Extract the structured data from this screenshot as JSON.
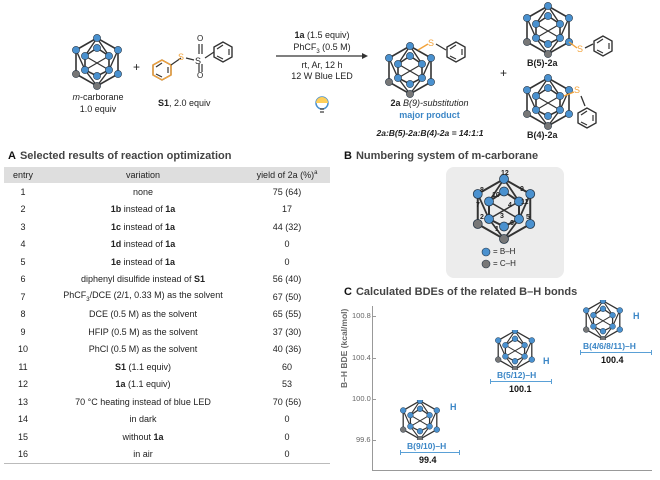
{
  "scheme": {
    "reactant1_label_italic": "m",
    "reactant1_label_rest": "-carborane",
    "reactant1_equiv": "1.0 equiv",
    "plus": "+",
    "reactant2_bold": "S1",
    "reactant2_rest": ", 2.0 equiv",
    "cond1_bold": "1a",
    "cond1_rest": " (1.5 equiv)",
    "cond2": "PhCF",
    "cond2_sub": "3",
    "cond2_rest": " (0.5 M)",
    "cond3": "rt, Ar, 12 h",
    "cond4": "12 W Blue LED",
    "product_bold": "2a",
    "product_italic": " B(9)-substitution",
    "major": "major product",
    "ratio": "2a:B(5)-2a:B(4)-2a = 14:1:1",
    "side1": "B(5)-2a",
    "side2": "B(4)-2a",
    "atom_S": "S",
    "atom_O": "O"
  },
  "sectionA": {
    "letter": "A",
    "title": "Selected results of reaction optimization"
  },
  "table": {
    "headers": [
      "entry",
      "variation",
      "yield of 2a (%)"
    ],
    "header_sup": "a",
    "rows": [
      [
        "1",
        "none",
        "75 (64)"
      ],
      [
        "2",
        "1b instead of 1a",
        "17"
      ],
      [
        "3",
        "1c instead of 1a",
        "44 (32)"
      ],
      [
        "4",
        "1d  instead of 1a",
        "0"
      ],
      [
        "5",
        "1e instead of 1a",
        "0"
      ],
      [
        "6",
        "diphenyl disulfide instead of S1",
        "56 (40)"
      ],
      [
        "7",
        "PhCF3/DCE (2/1, 0.33 M) as the solvent",
        "67 (50)"
      ],
      [
        "8",
        "DCE (0.5 M) as the solvent",
        "65 (55)"
      ],
      [
        "9",
        "HFIP (0.5 M) as the solvent",
        "37 (30)"
      ],
      [
        "10",
        "PhCl (0.5 M) as the solvent",
        "40 (36)"
      ],
      [
        "11",
        "S1 (1.1 equiv)",
        "60"
      ],
      [
        "12",
        "1a (1.1 equiv)",
        "53"
      ],
      [
        "13",
        "70 °C heating instead of blue LED",
        "70 (56)"
      ],
      [
        "14",
        "in dark",
        "0"
      ],
      [
        "15",
        "without 1a",
        "0"
      ],
      [
        "16",
        "in air",
        "0"
      ]
    ]
  },
  "sectionB": {
    "letter": "B",
    "title": "Numbering system of m-carborane"
  },
  "numbering": {
    "labels": [
      "12",
      "8",
      "10",
      "9",
      "7",
      "11",
      "2",
      "3",
      "4",
      "6",
      "5",
      "1"
    ],
    "legend_bh": "= B–H",
    "legend_ch": "= C–H"
  },
  "sectionC": {
    "letter": "C",
    "title": "Calculated BDEs of the related B–H bonds"
  },
  "bde": {
    "ylabel": "B–H BDE (kcal/mol)",
    "yticks": [
      "100.8",
      "100.4",
      "100.0",
      "99.6"
    ],
    "levels": [
      {
        "label": "B(9/10)–H",
        "value": "99.4",
        "h": "H"
      },
      {
        "label": "B(5/12)–H",
        "value": "100.1",
        "h": "H"
      },
      {
        "label": "B(4/6/8/11)–H",
        "value": "100.4",
        "h": "H"
      }
    ]
  },
  "colors": {
    "boron": "#4a91cf",
    "carbon": "#777777",
    "sulfur": "#f2a23a",
    "box": "#dbe6ef"
  }
}
